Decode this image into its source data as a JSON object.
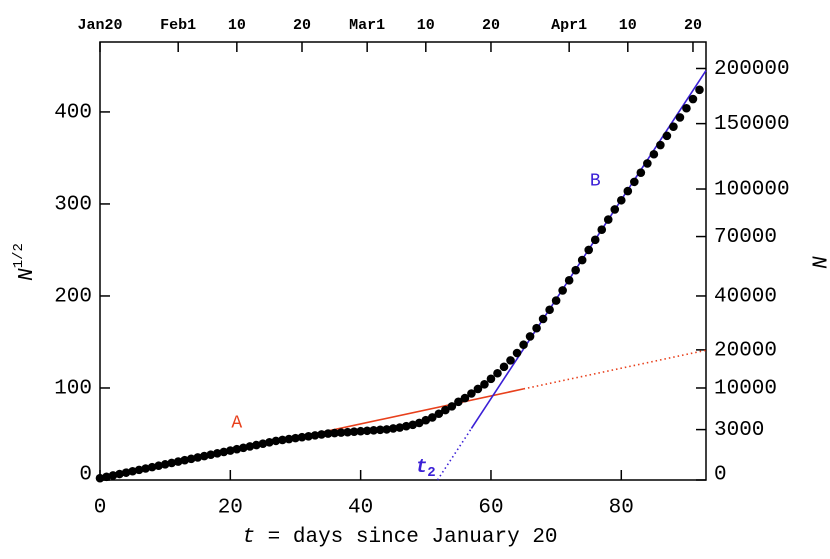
{
  "chart_data": {
    "type": "scatter",
    "xlabel_var": "t",
    "xlabel": "= days since January 20",
    "ylabel": "N",
    "ylabel_sup": "1/2",
    "y2label": "N",
    "xlim": [
      0,
      93
    ],
    "ylim": [
      0,
      476
    ],
    "y2lim": [
      0,
      226576
    ],
    "y2scale": "sqrt",
    "xticks": [
      0,
      20,
      40,
      60,
      80
    ],
    "yticks": [
      0,
      100,
      200,
      300,
      400
    ],
    "y2ticks": [
      0,
      3000,
      10000,
      20000,
      40000,
      70000,
      100000,
      150000,
      200000
    ],
    "x2ticks": [
      {
        "value": 0,
        "label": "Jan20"
      },
      {
        "value": 12,
        "label": "Feb1"
      },
      {
        "value": 21,
        "label": "10"
      },
      {
        "value": 31,
        "label": "20"
      },
      {
        "value": 41,
        "label": "Mar1"
      },
      {
        "value": 50,
        "label": "10"
      },
      {
        "value": 60,
        "label": "20"
      },
      {
        "value": 72,
        "label": "Apr1"
      },
      {
        "value": 81,
        "label": "10"
      },
      {
        "value": 91,
        "label": "20"
      }
    ],
    "series": [
      {
        "color": "#000000",
        "x": [
          0,
          1,
          2,
          3,
          4,
          5,
          6,
          7,
          8,
          9,
          10,
          11,
          12,
          13,
          14,
          15,
          16,
          17,
          18,
          19,
          20,
          21,
          22,
          23,
          24,
          25,
          26,
          27,
          28,
          29,
          30,
          31,
          32,
          33,
          34,
          35,
          36,
          37,
          38,
          39,
          40,
          41,
          42,
          43,
          44,
          45,
          46,
          47,
          48,
          49,
          50,
          51,
          52,
          53,
          54,
          55,
          56,
          57,
          58,
          59,
          60,
          61,
          62,
          63,
          64,
          65,
          66,
          67,
          68,
          69,
          70,
          71,
          72,
          73,
          74,
          75,
          76,
          77,
          78,
          79,
          80,
          81,
          82,
          83,
          84,
          85,
          86,
          87,
          88,
          89,
          90,
          91,
          92
        ],
        "values": [
          2,
          3.5,
          5,
          6.5,
          8,
          9.5,
          11,
          12.5,
          14,
          15.5,
          17,
          18.5,
          20,
          21.5,
          23,
          24.5,
          26,
          27.5,
          29,
          30.5,
          32,
          33.5,
          35,
          36.5,
          38,
          39.5,
          41,
          42.5,
          43.5,
          44.5,
          45.5,
          46.5,
          47.5,
          48.5,
          49.5,
          50.5,
          51,
          51.5,
          52,
          52.5,
          53,
          53.5,
          54,
          54.5,
          55,
          56,
          57,
          58.5,
          60,
          62,
          65,
          68,
          72,
          76,
          80,
          85,
          89,
          94,
          99,
          104,
          110,
          116,
          123,
          130,
          138,
          147,
          156,
          165,
          175,
          185,
          195,
          206,
          217,
          228,
          239,
          250,
          261,
          272,
          283,
          294,
          304,
          314,
          324,
          334,
          344,
          354,
          364,
          374,
          384,
          394,
          404,
          414,
          424
        ]
      }
    ],
    "fits": [
      {
        "label": "A",
        "color": "#e8401c",
        "label_x": 21,
        "label_y": 62,
        "segments": [
          {
            "style": "solid",
            "x": [
              0,
              65
            ],
            "values": [
              0,
              99
            ]
          },
          {
            "style": "dotted",
            "x": [
              65,
              93
            ],
            "values": [
              99,
              141
            ]
          }
        ]
      },
      {
        "label": "B",
        "color": "#3a1fd6",
        "label_x": 76,
        "label_y": 325,
        "segments": [
          {
            "style": "solid",
            "x": [
              57,
              93
            ],
            "values": [
              56,
              445
            ]
          },
          {
            "style": "dotted",
            "x": [
              51.8,
              57
            ],
            "values": [
              0,
              56
            ]
          }
        ]
      }
    ],
    "annotation": {
      "text": "t",
      "sub": "2",
      "x": 50,
      "y": 14,
      "color": "#3a1fd6"
    }
  }
}
